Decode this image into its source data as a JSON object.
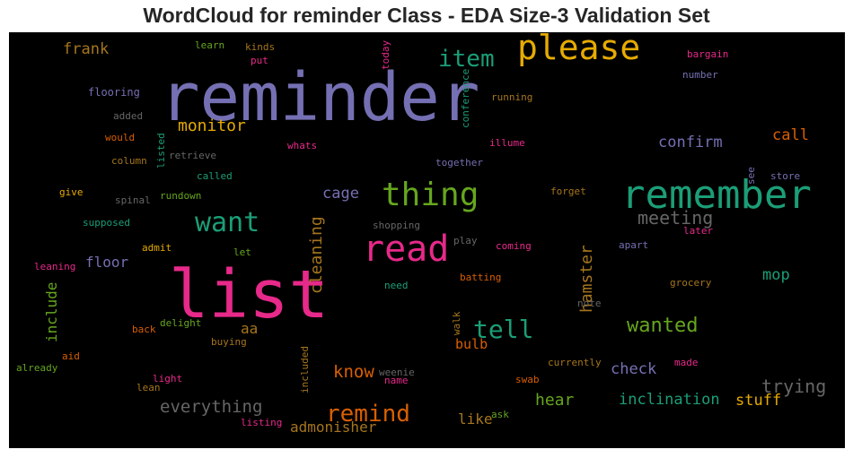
{
  "chart_data": {
    "type": "wordcloud",
    "title": "WordCloud for reminder Class - EDA Size-3 Validation Set",
    "background": "#000000",
    "colormap": "Dark2",
    "words": [
      {
        "text": "reminder",
        "color": "#7570b3",
        "vertical": false
      },
      {
        "text": "list",
        "color": "#e7298a",
        "vertical": false
      },
      {
        "text": "remember",
        "color": "#1b9e77",
        "vertical": false
      },
      {
        "text": "please",
        "color": "#e6ab02",
        "vertical": false
      },
      {
        "text": "read",
        "color": "#e7298a",
        "vertical": false
      },
      {
        "text": "thing",
        "color": "#66a61e",
        "vertical": false
      },
      {
        "text": "want",
        "color": "#1b9e77",
        "vertical": false
      },
      {
        "text": "item",
        "color": "#1b9e77",
        "vertical": false
      },
      {
        "text": "tell",
        "color": "#1b9e77",
        "vertical": false
      },
      {
        "text": "remind",
        "color": "#d95f02",
        "vertical": false
      },
      {
        "text": "wanted",
        "color": "#66a61e",
        "vertical": false
      },
      {
        "text": "meeting",
        "color": "#666666",
        "vertical": false
      },
      {
        "text": "everything",
        "color": "#666666",
        "vertical": false
      },
      {
        "text": "trying",
        "color": "#666666",
        "vertical": false
      },
      {
        "text": "cleaning",
        "color": "#a6761d",
        "vertical": true
      },
      {
        "text": "hamster",
        "color": "#a6761d",
        "vertical": true
      },
      {
        "text": "include",
        "color": "#66a61e",
        "vertical": true
      },
      {
        "text": "confirm",
        "color": "#7570b3",
        "vertical": false
      },
      {
        "text": "monitor",
        "color": "#e6ab02",
        "vertical": false
      },
      {
        "text": "know",
        "color": "#d95f02",
        "vertical": false
      },
      {
        "text": "frank",
        "color": "#a6761d",
        "vertical": false
      },
      {
        "text": "cage",
        "color": "#7570b3",
        "vertical": false
      },
      {
        "text": "call",
        "color": "#d95f02",
        "vertical": false
      },
      {
        "text": "inclination",
        "color": "#1b9e77",
        "vertical": false
      },
      {
        "text": "admonisher",
        "color": "#a6761d",
        "vertical": false
      },
      {
        "text": "hear",
        "color": "#66a61e",
        "vertical": false
      },
      {
        "text": "mop",
        "color": "#1b9e77",
        "vertical": false
      },
      {
        "text": "floor",
        "color": "#7570b3",
        "vertical": false
      },
      {
        "text": "stuff",
        "color": "#e6ab02",
        "vertical": false
      },
      {
        "text": "check",
        "color": "#7570b3",
        "vertical": false
      },
      {
        "text": "bulb",
        "color": "#d95f02",
        "vertical": false
      },
      {
        "text": "like",
        "color": "#a6761d",
        "vertical": false
      },
      {
        "text": "aa",
        "color": "#a6761d",
        "vertical": false
      },
      {
        "text": "flooring",
        "color": "#7570b3",
        "vertical": false
      },
      {
        "text": "learn",
        "color": "#66a61e",
        "vertical": false
      },
      {
        "text": "kinds",
        "color": "#a6761d",
        "vertical": false
      },
      {
        "text": "put",
        "color": "#e7298a",
        "vertical": false
      },
      {
        "text": "today",
        "color": "#e7298a",
        "vertical": true
      },
      {
        "text": "bargain",
        "color": "#e7298a",
        "vertical": false
      },
      {
        "text": "number",
        "color": "#7570b3",
        "vertical": false
      },
      {
        "text": "running",
        "color": "#a6761d",
        "vertical": false
      },
      {
        "text": "conference",
        "color": "#1b9e77",
        "vertical": true
      },
      {
        "text": "added",
        "color": "#666666",
        "vertical": false
      },
      {
        "text": "would",
        "color": "#d95f02",
        "vertical": false
      },
      {
        "text": "listed",
        "color": "#1b9e77",
        "vertical": true
      },
      {
        "text": "whats",
        "color": "#e7298a",
        "vertical": false
      },
      {
        "text": "illume",
        "color": "#e7298a",
        "vertical": false
      },
      {
        "text": "column",
        "color": "#a6761d",
        "vertical": false
      },
      {
        "text": "retrieve",
        "color": "#666666",
        "vertical": false
      },
      {
        "text": "together",
        "color": "#7570b3",
        "vertical": false
      },
      {
        "text": "see",
        "color": "#7570b3",
        "vertical": true
      },
      {
        "text": "store",
        "color": "#7570b3",
        "vertical": false
      },
      {
        "text": "called",
        "color": "#1b9e77",
        "vertical": false
      },
      {
        "text": "give",
        "color": "#e6ab02",
        "vertical": false
      },
      {
        "text": "rundown",
        "color": "#66a61e",
        "vertical": false
      },
      {
        "text": "spinal",
        "color": "#666666",
        "vertical": false
      },
      {
        "text": "forget",
        "color": "#a6761d",
        "vertical": false
      },
      {
        "text": "supposed",
        "color": "#1b9e77",
        "vertical": false
      },
      {
        "text": "shopping",
        "color": "#666666",
        "vertical": false
      },
      {
        "text": "later",
        "color": "#e7298a",
        "vertical": false
      },
      {
        "text": "admit",
        "color": "#e6ab02",
        "vertical": false
      },
      {
        "text": "let",
        "color": "#66a61e",
        "vertical": false
      },
      {
        "text": "play",
        "color": "#666666",
        "vertical": false
      },
      {
        "text": "coming",
        "color": "#e7298a",
        "vertical": false
      },
      {
        "text": "apart",
        "color": "#7570b3",
        "vertical": false
      },
      {
        "text": "leaning",
        "color": "#e7298a",
        "vertical": false
      },
      {
        "text": "batting",
        "color": "#d95f02",
        "vertical": false
      },
      {
        "text": "need",
        "color": "#1b9e77",
        "vertical": false
      },
      {
        "text": "grocery",
        "color": "#a6761d",
        "vertical": false
      },
      {
        "text": "note",
        "color": "#666666",
        "vertical": false
      },
      {
        "text": "walk",
        "color": "#a6761d",
        "vertical": true
      },
      {
        "text": "delight",
        "color": "#66a61e",
        "vertical": false
      },
      {
        "text": "back",
        "color": "#d95f02",
        "vertical": false
      },
      {
        "text": "buying",
        "color": "#a6761d",
        "vertical": false
      },
      {
        "text": "aid",
        "color": "#d95f02",
        "vertical": false
      },
      {
        "text": "already",
        "color": "#66a61e",
        "vertical": false
      },
      {
        "text": "currently",
        "color": "#a6761d",
        "vertical": false
      },
      {
        "text": "made",
        "color": "#e7298a",
        "vertical": false
      },
      {
        "text": "light",
        "color": "#e7298a",
        "vertical": false
      },
      {
        "text": "lean",
        "color": "#a6761d",
        "vertical": false
      },
      {
        "text": "weenie",
        "color": "#666666",
        "vertical": false
      },
      {
        "text": "name",
        "color": "#e7298a",
        "vertical": false
      },
      {
        "text": "swab",
        "color": "#d95f02",
        "vertical": false
      },
      {
        "text": "included",
        "color": "#a6761d",
        "vertical": true
      },
      {
        "text": "ask",
        "color": "#66a61e",
        "vertical": false
      },
      {
        "text": "listing",
        "color": "#e7298a",
        "vertical": false
      }
    ]
  }
}
